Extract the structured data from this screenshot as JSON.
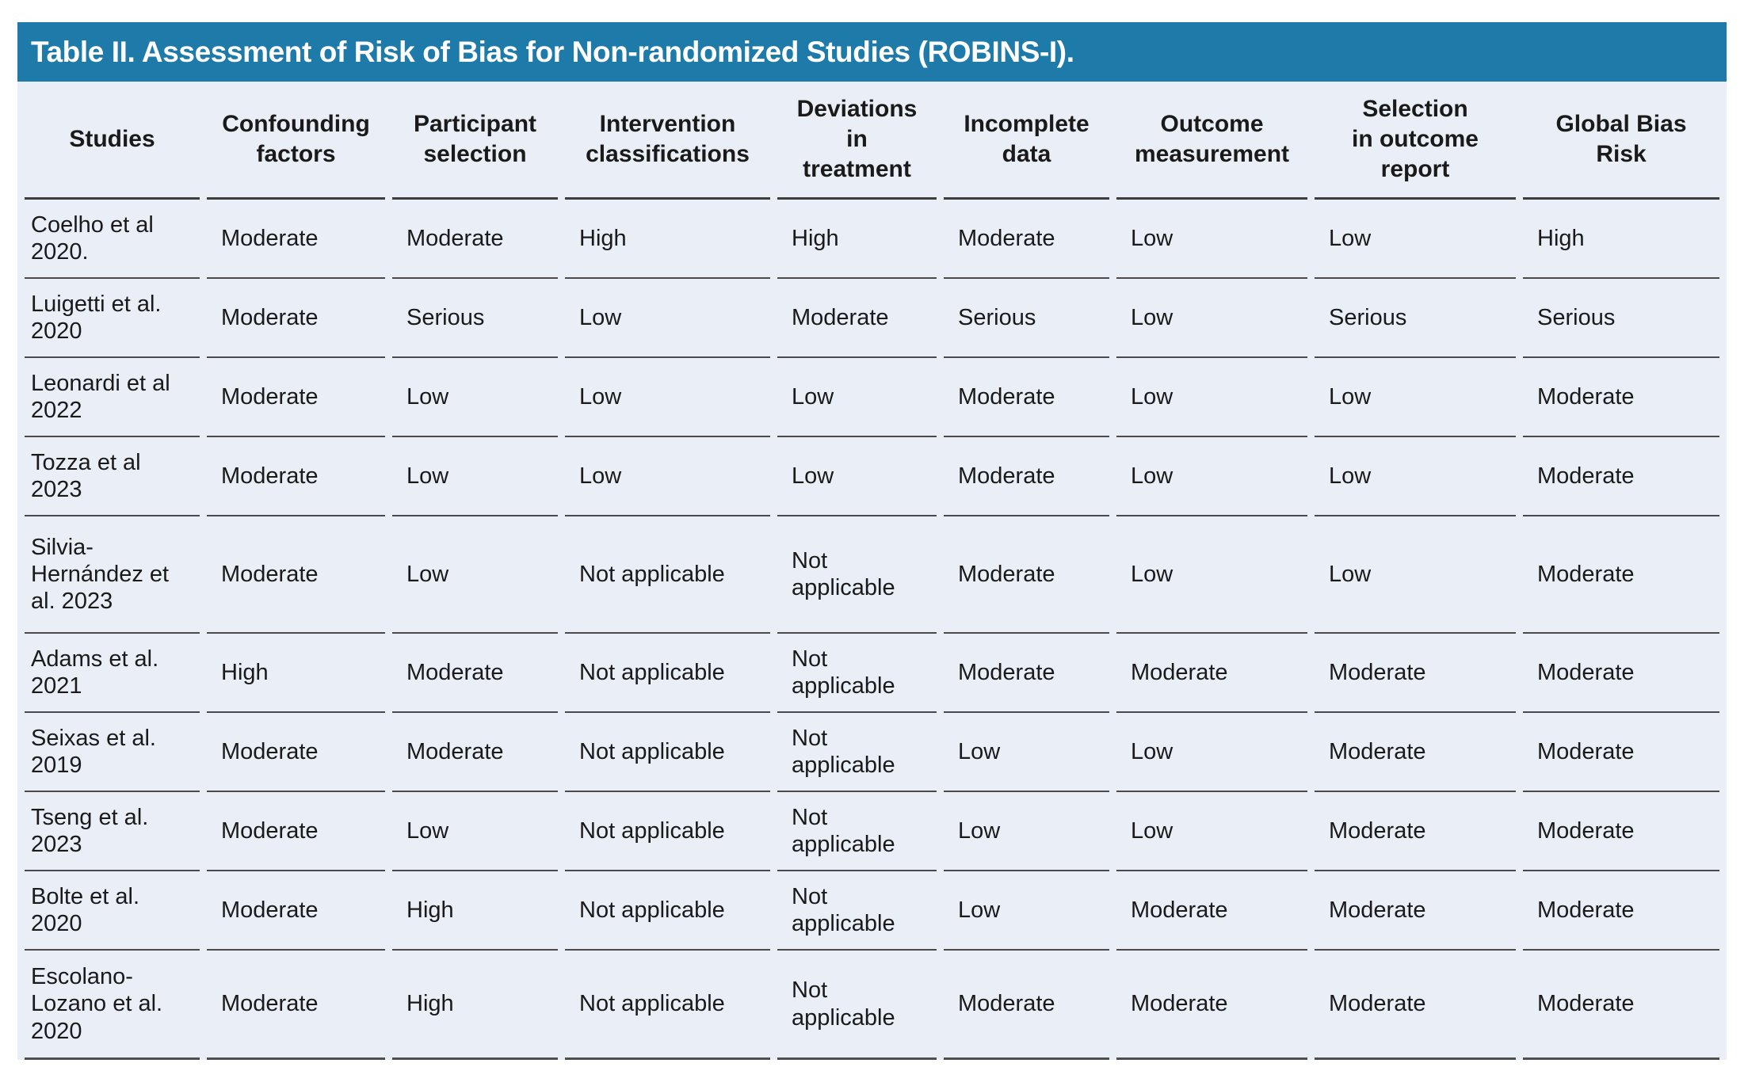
{
  "colors": {
    "title_bar": "#1e7aa9",
    "body_bg": "#eaeef7",
    "text": "#1a1a1a",
    "separator": "#4a4a4a",
    "title_text": "#ffffff"
  },
  "table": {
    "title": "Table II. Assessment of Risk of Bias for Non-randomized Studies (ROBINS-I).",
    "columns": [
      "Studies",
      "Confounding\nfactors",
      "Participant\nselection",
      "Intervention\nclassifications",
      "Deviations\nin\ntreatment",
      "Incomplete\ndata",
      "Outcome\nmeasurement",
      "Selection\nin outcome\nreport",
      "Global Bias\nRisk"
    ],
    "rows": [
      {
        "study": "Coelho et al 2020.",
        "values": [
          "Moderate",
          "Moderate",
          "High",
          "High",
          "Moderate",
          "Low",
          "Low",
          "High"
        ]
      },
      {
        "study": "Luigetti et al. 2020",
        "values": [
          "Moderate",
          "Serious",
          "Low",
          "Moderate",
          "Serious",
          "Low",
          "Serious",
          "Serious"
        ]
      },
      {
        "study": "Leonardi et al 2022",
        "values": [
          "Moderate",
          "Low",
          "Low",
          "Low",
          "Moderate",
          "Low",
          "Low",
          "Moderate"
        ]
      },
      {
        "study": "Tozza et al 2023",
        "values": [
          "Moderate",
          "Low",
          "Low",
          "Low",
          "Moderate",
          "Low",
          "Low",
          "Moderate"
        ]
      },
      {
        "study": "Silvia-Hernández et al. 2023",
        "values": [
          "Moderate",
          "Low",
          "Not applicable",
          "Not applicable",
          "Moderate",
          "Low",
          "Low",
          "Moderate"
        ]
      },
      {
        "study": "Adams et al. 2021",
        "values": [
          "High",
          "Moderate",
          "Not applicable",
          "Not applicable",
          "Moderate",
          "Moderate",
          "Moderate",
          "Moderate"
        ]
      },
      {
        "study": "Seixas et al. 2019",
        "values": [
          "Moderate",
          "Moderate",
          "Not applicable",
          "Not applicable",
          "Low",
          "Low",
          "Moderate",
          "Moderate"
        ]
      },
      {
        "study": "Tseng et al. 2023",
        "values": [
          "Moderate",
          "Low",
          "Not applicable",
          "Not applicable",
          "Low",
          "Low",
          "Moderate",
          "Moderate"
        ]
      },
      {
        "study": "Bolte et al. 2020",
        "values": [
          "Moderate",
          "High",
          "Not applicable",
          "Not applicable",
          "Low",
          "Moderate",
          "Moderate",
          "Moderate"
        ]
      },
      {
        "study": "Escolano-Lozano et al. 2020",
        "values": [
          "Moderate",
          "High",
          "Not applicable",
          "Not applicable",
          "Moderate",
          "Moderate",
          "Moderate",
          "Moderate"
        ]
      }
    ]
  }
}
